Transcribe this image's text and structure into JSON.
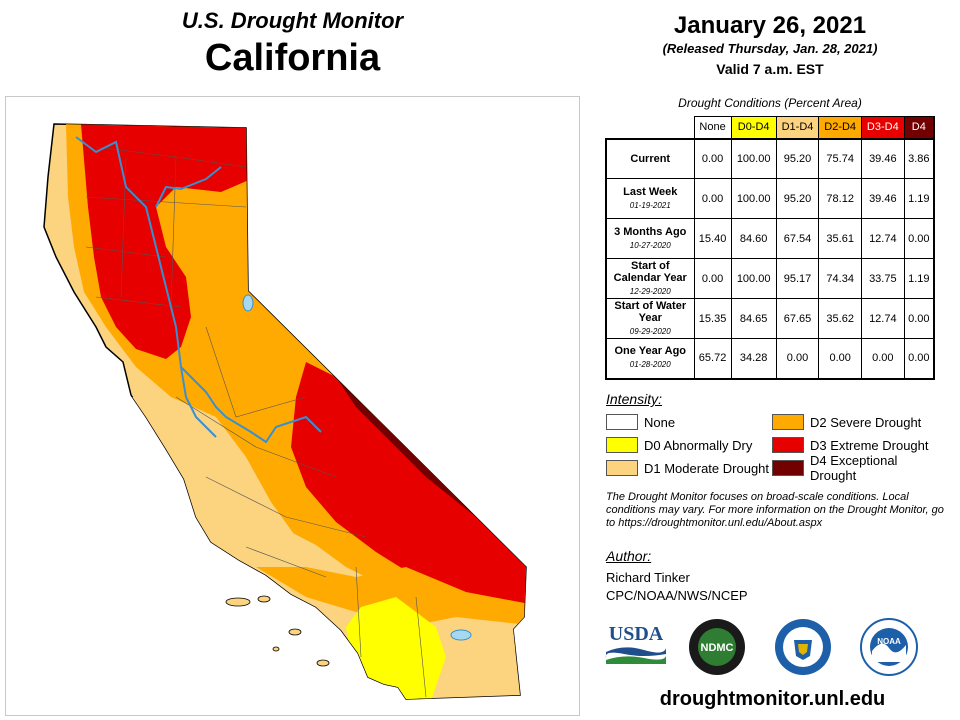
{
  "header": {
    "line1": "U.S. Drought Monitor",
    "line2": "California"
  },
  "date": {
    "main": "January 26, 2021",
    "released": "(Released Thursday, Jan. 28, 2021)",
    "valid": "Valid 7 a.m. EST"
  },
  "table": {
    "caption": "Drought Conditions (Percent Area)",
    "columns": [
      {
        "label": "None",
        "bg": "#ffffff",
        "fg": "#000000"
      },
      {
        "label": "D0-D4",
        "bg": "#ffff00",
        "fg": "#000000"
      },
      {
        "label": "D1-D4",
        "bg": "#fcd37f",
        "fg": "#000000"
      },
      {
        "label": "D2-D4",
        "bg": "#ffaa00",
        "fg": "#000000"
      },
      {
        "label": "D3-D4",
        "bg": "#e60000",
        "fg": "#ffffff"
      },
      {
        "label": "D4",
        "bg": "#730000",
        "fg": "#ffffff"
      }
    ],
    "rows": [
      {
        "label": "Current",
        "date": "",
        "values": [
          "0.00",
          "100.00",
          "95.20",
          "75.74",
          "39.46",
          "3.86"
        ]
      },
      {
        "label": "Last Week",
        "date": "01-19-2021",
        "values": [
          "0.00",
          "100.00",
          "95.20",
          "78.12",
          "39.46",
          "1.19"
        ]
      },
      {
        "label": "3 Months Ago",
        "date": "10-27-2020",
        "values": [
          "15.40",
          "84.60",
          "67.54",
          "35.61",
          "12.74",
          "0.00"
        ]
      },
      {
        "label": "Start of Calendar Year",
        "date": "12-29-2020",
        "values": [
          "0.00",
          "100.00",
          "95.17",
          "74.34",
          "33.75",
          "1.19"
        ]
      },
      {
        "label": "Start of Water Year",
        "date": "09-29-2020",
        "values": [
          "15.35",
          "84.65",
          "67.65",
          "35.62",
          "12.74",
          "0.00"
        ]
      },
      {
        "label": "One Year Ago",
        "date": "01-28-2020",
        "values": [
          "65.72",
          "34.28",
          "0.00",
          "0.00",
          "0.00",
          "0.00"
        ]
      }
    ]
  },
  "intensity": {
    "title": "Intensity:",
    "items": [
      {
        "label": "None",
        "color": "#ffffff"
      },
      {
        "label": "D0 Abnormally Dry",
        "color": "#ffff00"
      },
      {
        "label": "D1 Moderate Drought",
        "color": "#fcd37f"
      },
      {
        "label": "D2 Severe Drought",
        "color": "#ffaa00"
      },
      {
        "label": "D3 Extreme Drought",
        "color": "#e60000"
      },
      {
        "label": "D4 Exceptional Drought",
        "color": "#730000"
      }
    ]
  },
  "disclaimer": "The Drought Monitor focuses on broad-scale conditions. Local conditions may vary. For more information on the Drought Monitor, go to https://droughtmonitor.unl.edu/About.aspx",
  "author": {
    "title": "Author:",
    "name": "Richard Tinker",
    "org": "CPC/NOAA/NWS/NCEP"
  },
  "logos": {
    "usda": "USDA",
    "ndmc": "NDMC",
    "noaa": "NOAA"
  },
  "website": "droughtmonitor.unl.edu",
  "map_colors": {
    "none": "#ffffff",
    "d0": "#ffff00",
    "d1": "#fcd37f",
    "d2": "#ffaa00",
    "d3": "#e60000",
    "d4": "#730000",
    "water": "#a6d8f0",
    "river": "#3a8fd0"
  }
}
